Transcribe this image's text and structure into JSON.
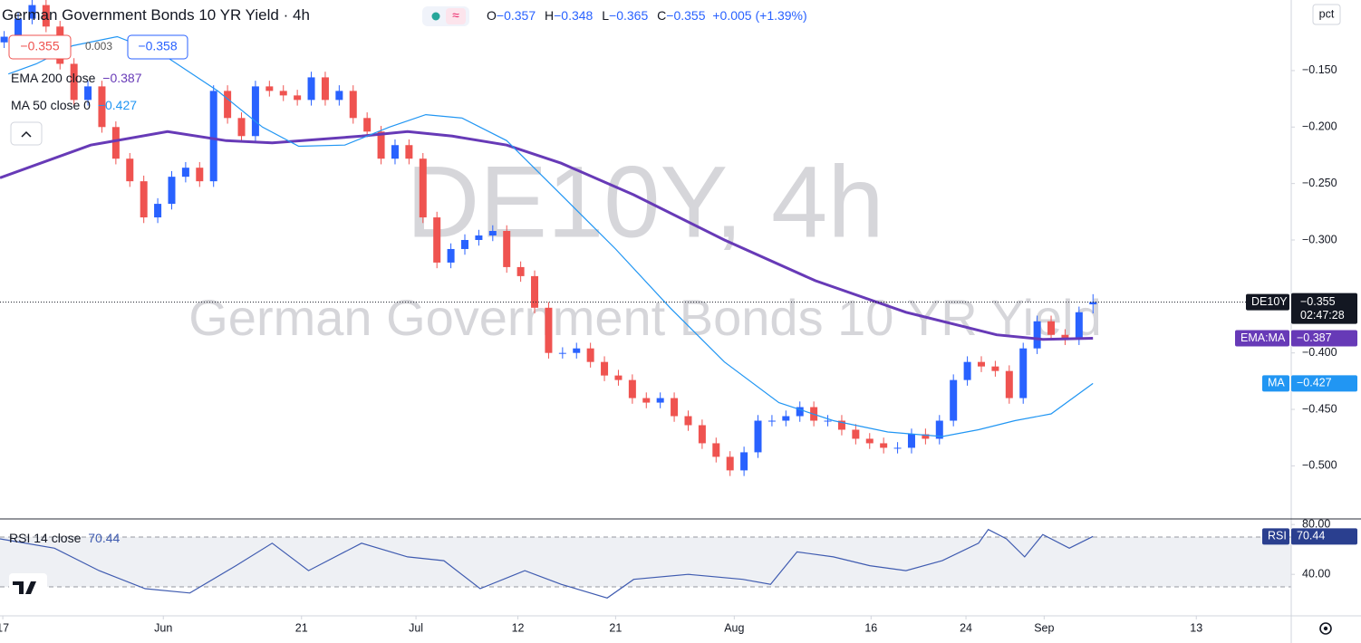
{
  "header": {
    "title": "German Government Bonds 10 YR Yield",
    "dot": "·",
    "interval": "4h",
    "o_label": "O",
    "o_value": "−0.357",
    "h_label": "H",
    "h_value": "−0.348",
    "l_label": "L",
    "l_value": "−0.365",
    "c_label": "C",
    "c_value": "−0.355",
    "change": "+0.005 (+1.39%)",
    "sell": "−0.355",
    "spread": "0.003",
    "buy": "−0.358",
    "ema_value": "−0.387",
    "ma_value": "−0.427",
    "pct": "pct",
    "watermark_symbol": "DE10Y, 4h",
    "watermark_name": "German Government Bonds 10 YR Yield"
  },
  "chart_data": [
    {
      "type": "candlestick",
      "up_color": "#2962ff",
      "down_color": "#ef5350",
      "x": [
        0,
        1,
        2,
        3,
        4,
        5,
        6,
        7,
        8,
        9,
        10,
        11,
        12,
        13,
        14,
        15,
        16,
        17,
        18,
        19,
        20,
        21,
        22,
        23,
        24,
        25,
        26,
        27,
        28,
        29,
        30,
        31,
        32,
        33,
        34,
        35,
        36,
        37,
        38,
        39,
        40,
        41,
        42,
        43,
        44,
        45,
        46,
        47,
        48,
        49,
        50,
        51,
        52,
        53,
        54,
        55,
        56,
        57,
        58,
        59,
        60,
        61,
        62,
        63,
        64,
        65,
        66,
        67,
        68,
        69,
        70,
        71,
        72,
        73,
        74,
        75,
        76,
        77,
        78
      ],
      "open": [
        -0.125,
        -0.12,
        -0.104,
        -0.092,
        -0.111,
        -0.144,
        -0.176,
        -0.164,
        -0.2,
        -0.228,
        -0.248,
        -0.28,
        -0.268,
        -0.244,
        -0.236,
        -0.248,
        -0.168,
        -0.192,
        -0.208,
        -0.164,
        -0.168,
        -0.172,
        -0.176,
        -0.156,
        -0.176,
        -0.168,
        -0.192,
        -0.204,
        -0.228,
        -0.216,
        -0.228,
        -0.28,
        -0.32,
        -0.308,
        -0.3,
        -0.296,
        -0.292,
        -0.324,
        -0.332,
        -0.36,
        -0.4,
        -0.4,
        -0.396,
        -0.408,
        -0.42,
        -0.424,
        -0.44,
        -0.444,
        -0.44,
        -0.456,
        -0.464,
        -0.48,
        -0.492,
        -0.504,
        -0.488,
        -0.46,
        -0.46,
        -0.456,
        -0.448,
        -0.46,
        -0.46,
        -0.468,
        -0.476,
        -0.48,
        -0.484,
        -0.484,
        -0.472,
        -0.476,
        -0.46,
        -0.424,
        -0.408,
        -0.412,
        -0.416,
        -0.44,
        -0.396,
        -0.372,
        -0.384,
        -0.388,
        -0.357
      ],
      "high": [
        -0.115,
        -0.099,
        -0.087,
        -0.087,
        -0.106,
        -0.139,
        -0.159,
        -0.159,
        -0.195,
        -0.223,
        -0.243,
        -0.263,
        -0.239,
        -0.231,
        -0.231,
        -0.163,
        -0.163,
        -0.187,
        -0.159,
        -0.159,
        -0.163,
        -0.167,
        -0.151,
        -0.151,
        -0.163,
        -0.163,
        -0.187,
        -0.199,
        -0.211,
        -0.211,
        -0.223,
        -0.275,
        -0.303,
        -0.295,
        -0.291,
        -0.287,
        -0.287,
        -0.319,
        -0.327,
        -0.355,
        -0.395,
        -0.391,
        -0.391,
        -0.403,
        -0.415,
        -0.419,
        -0.435,
        -0.435,
        -0.435,
        -0.451,
        -0.459,
        -0.475,
        -0.487,
        -0.483,
        -0.455,
        -0.455,
        -0.451,
        -0.443,
        -0.443,
        -0.455,
        -0.455,
        -0.463,
        -0.471,
        -0.475,
        -0.479,
        -0.467,
        -0.467,
        -0.455,
        -0.419,
        -0.403,
        -0.403,
        -0.407,
        -0.411,
        -0.391,
        -0.367,
        -0.367,
        -0.379,
        -0.359,
        -0.348
      ],
      "low": [
        -0.13,
        -0.125,
        -0.109,
        -0.116,
        -0.149,
        -0.181,
        -0.181,
        -0.205,
        -0.233,
        -0.253,
        -0.285,
        -0.285,
        -0.273,
        -0.249,
        -0.253,
        -0.253,
        -0.197,
        -0.213,
        -0.213,
        -0.173,
        -0.177,
        -0.181,
        -0.181,
        -0.181,
        -0.181,
        -0.197,
        -0.209,
        -0.233,
        -0.233,
        -0.233,
        -0.285,
        -0.325,
        -0.325,
        -0.313,
        -0.305,
        -0.301,
        -0.329,
        -0.337,
        -0.365,
        -0.405,
        -0.405,
        -0.405,
        -0.413,
        -0.425,
        -0.429,
        -0.445,
        -0.449,
        -0.449,
        -0.461,
        -0.469,
        -0.485,
        -0.497,
        -0.509,
        -0.509,
        -0.493,
        -0.465,
        -0.465,
        -0.461,
        -0.465,
        -0.465,
        -0.473,
        -0.481,
        -0.485,
        -0.489,
        -0.489,
        -0.489,
        -0.481,
        -0.481,
        -0.465,
        -0.429,
        -0.417,
        -0.421,
        -0.445,
        -0.445,
        -0.401,
        -0.389,
        -0.393,
        -0.393,
        -0.365
      ],
      "close": [
        -0.12,
        -0.104,
        -0.092,
        -0.111,
        -0.144,
        -0.176,
        -0.164,
        -0.2,
        -0.228,
        -0.248,
        -0.28,
        -0.268,
        -0.244,
        -0.236,
        -0.248,
        -0.168,
        -0.192,
        -0.208,
        -0.164,
        -0.168,
        -0.172,
        -0.176,
        -0.156,
        -0.176,
        -0.168,
        -0.192,
        -0.204,
        -0.228,
        -0.216,
        -0.228,
        -0.28,
        -0.32,
        -0.308,
        -0.3,
        -0.296,
        -0.292,
        -0.324,
        -0.332,
        -0.36,
        -0.4,
        -0.4,
        -0.396,
        -0.408,
        -0.42,
        -0.424,
        -0.44,
        -0.444,
        -0.44,
        -0.456,
        -0.464,
        -0.48,
        -0.492,
        -0.504,
        -0.488,
        -0.46,
        -0.46,
        -0.456,
        -0.448,
        -0.46,
        -0.46,
        -0.468,
        -0.476,
        -0.48,
        -0.484,
        -0.484,
        -0.472,
        -0.476,
        -0.46,
        -0.424,
        -0.408,
        -0.412,
        -0.416,
        -0.44,
        -0.396,
        -0.372,
        -0.384,
        -0.388,
        -0.364,
        -0.355
      ],
      "overlays": [
        {
          "name": "EMA 200 close",
          "color": "#673ab7",
          "width": 3,
          "x": [
            -0.3,
            6.2,
            11.7,
            15.9,
            19.2,
            25.6,
            28.9,
            32.1,
            36.0,
            39.9,
            45.1,
            51.6,
            58.1,
            64.6,
            71.1,
            74.4,
            78
          ],
          "values": [
            -0.245,
            -0.216,
            -0.204,
            -0.212,
            -0.214,
            -0.208,
            -0.204,
            -0.208,
            -0.216,
            -0.232,
            -0.26,
            -0.3,
            -0.336,
            -0.364,
            -0.384,
            -0.388,
            -0.387
          ]
        },
        {
          "name": "MA 50 close 0",
          "color": "#2196f3",
          "width": 1.2,
          "x": [
            0.3,
            2.3,
            4.9,
            8.1,
            11.4,
            15.3,
            18.5,
            21.1,
            24.4,
            27.6,
            30.2,
            32.8,
            36.0,
            39.9,
            43.8,
            47.7,
            51.6,
            55.5,
            59.4,
            63.3,
            67.2,
            69.8,
            72.4,
            75.0,
            78
          ],
          "values": [
            -0.153,
            -0.144,
            -0.128,
            -0.12,
            -0.136,
            -0.168,
            -0.2,
            -0.217,
            -0.216,
            -0.2,
            -0.189,
            -0.192,
            -0.212,
            -0.26,
            -0.308,
            -0.36,
            -0.408,
            -0.444,
            -0.46,
            -0.47,
            -0.474,
            -0.468,
            -0.46,
            -0.454,
            -0.427
          ]
        }
      ],
      "axis_labels": {
        "symbol": "DE10Y",
        "last": "−0.355",
        "countdown": "02:47:28",
        "ema_ma": "EMA:MA",
        "ema_last": "−0.387",
        "ma": "MA",
        "ma_last": "−0.427"
      },
      "xlim": [
        -0.3,
        92.2
      ],
      "xticks": [
        {
          "value": -0.1,
          "label": "17"
        },
        {
          "value": 11.4,
          "label": "Jun"
        },
        {
          "value": 21.3,
          "label": "21"
        },
        {
          "value": 29.5,
          "label": "Jul"
        },
        {
          "value": 36.8,
          "label": "12"
        },
        {
          "value": 43.8,
          "label": "21"
        },
        {
          "value": 52.3,
          "label": "Aug"
        },
        {
          "value": 62.1,
          "label": "16"
        },
        {
          "value": 68.9,
          "label": "24"
        },
        {
          "value": 74.5,
          "label": "Sep"
        },
        {
          "value": 85.4,
          "label": "13"
        }
      ],
      "ylim": [
        -0.547,
        -0.0875
      ],
      "yticks": [
        {
          "value": -0.15,
          "label": "−0.150"
        },
        {
          "value": -0.2,
          "label": "−0.200"
        },
        {
          "value": -0.25,
          "label": "−0.250"
        },
        {
          "value": -0.3,
          "label": "−0.300"
        },
        {
          "value": -0.4,
          "label": "−0.400"
        },
        {
          "value": -0.45,
          "label": "−0.450"
        },
        {
          "value": -0.5,
          "label": "−0.500"
        }
      ]
    },
    {
      "type": "line",
      "series": [
        {
          "name": "RSI 14 close",
          "color": "#3f5bb0",
          "x": [
            -0.3,
            3.6,
            6.8,
            10.1,
            13.3,
            16.6,
            19.2,
            21.8,
            25.6,
            28.9,
            31.5,
            34.1,
            37.3,
            39.9,
            43.2,
            45.1,
            49.0,
            52.9,
            54.9,
            56.8,
            59.4,
            62.0,
            64.6,
            67.2,
            69.8,
            70.5,
            71.8,
            73.1,
            74.4,
            76.3,
            78
          ],
          "values": [
            68.5,
            61,
            43,
            28.5,
            25,
            47,
            65,
            43,
            65,
            54,
            51,
            28.5,
            43,
            32,
            21,
            36,
            40,
            36,
            32,
            58,
            54,
            47,
            43,
            51,
            65,
            76,
            68.5,
            54,
            72,
            61,
            70.44
          ],
          "value_label": "70.44",
          "axis_tag": "RSI"
        }
      ],
      "band": [
        30,
        70
      ],
      "xlim": [
        -0.3,
        92.2
      ],
      "ylim": [
        6.7,
        84.5
      ],
      "yticks": [
        {
          "value": 80,
          "label": "80.00"
        },
        {
          "value": 40,
          "label": "40.00"
        }
      ]
    }
  ]
}
